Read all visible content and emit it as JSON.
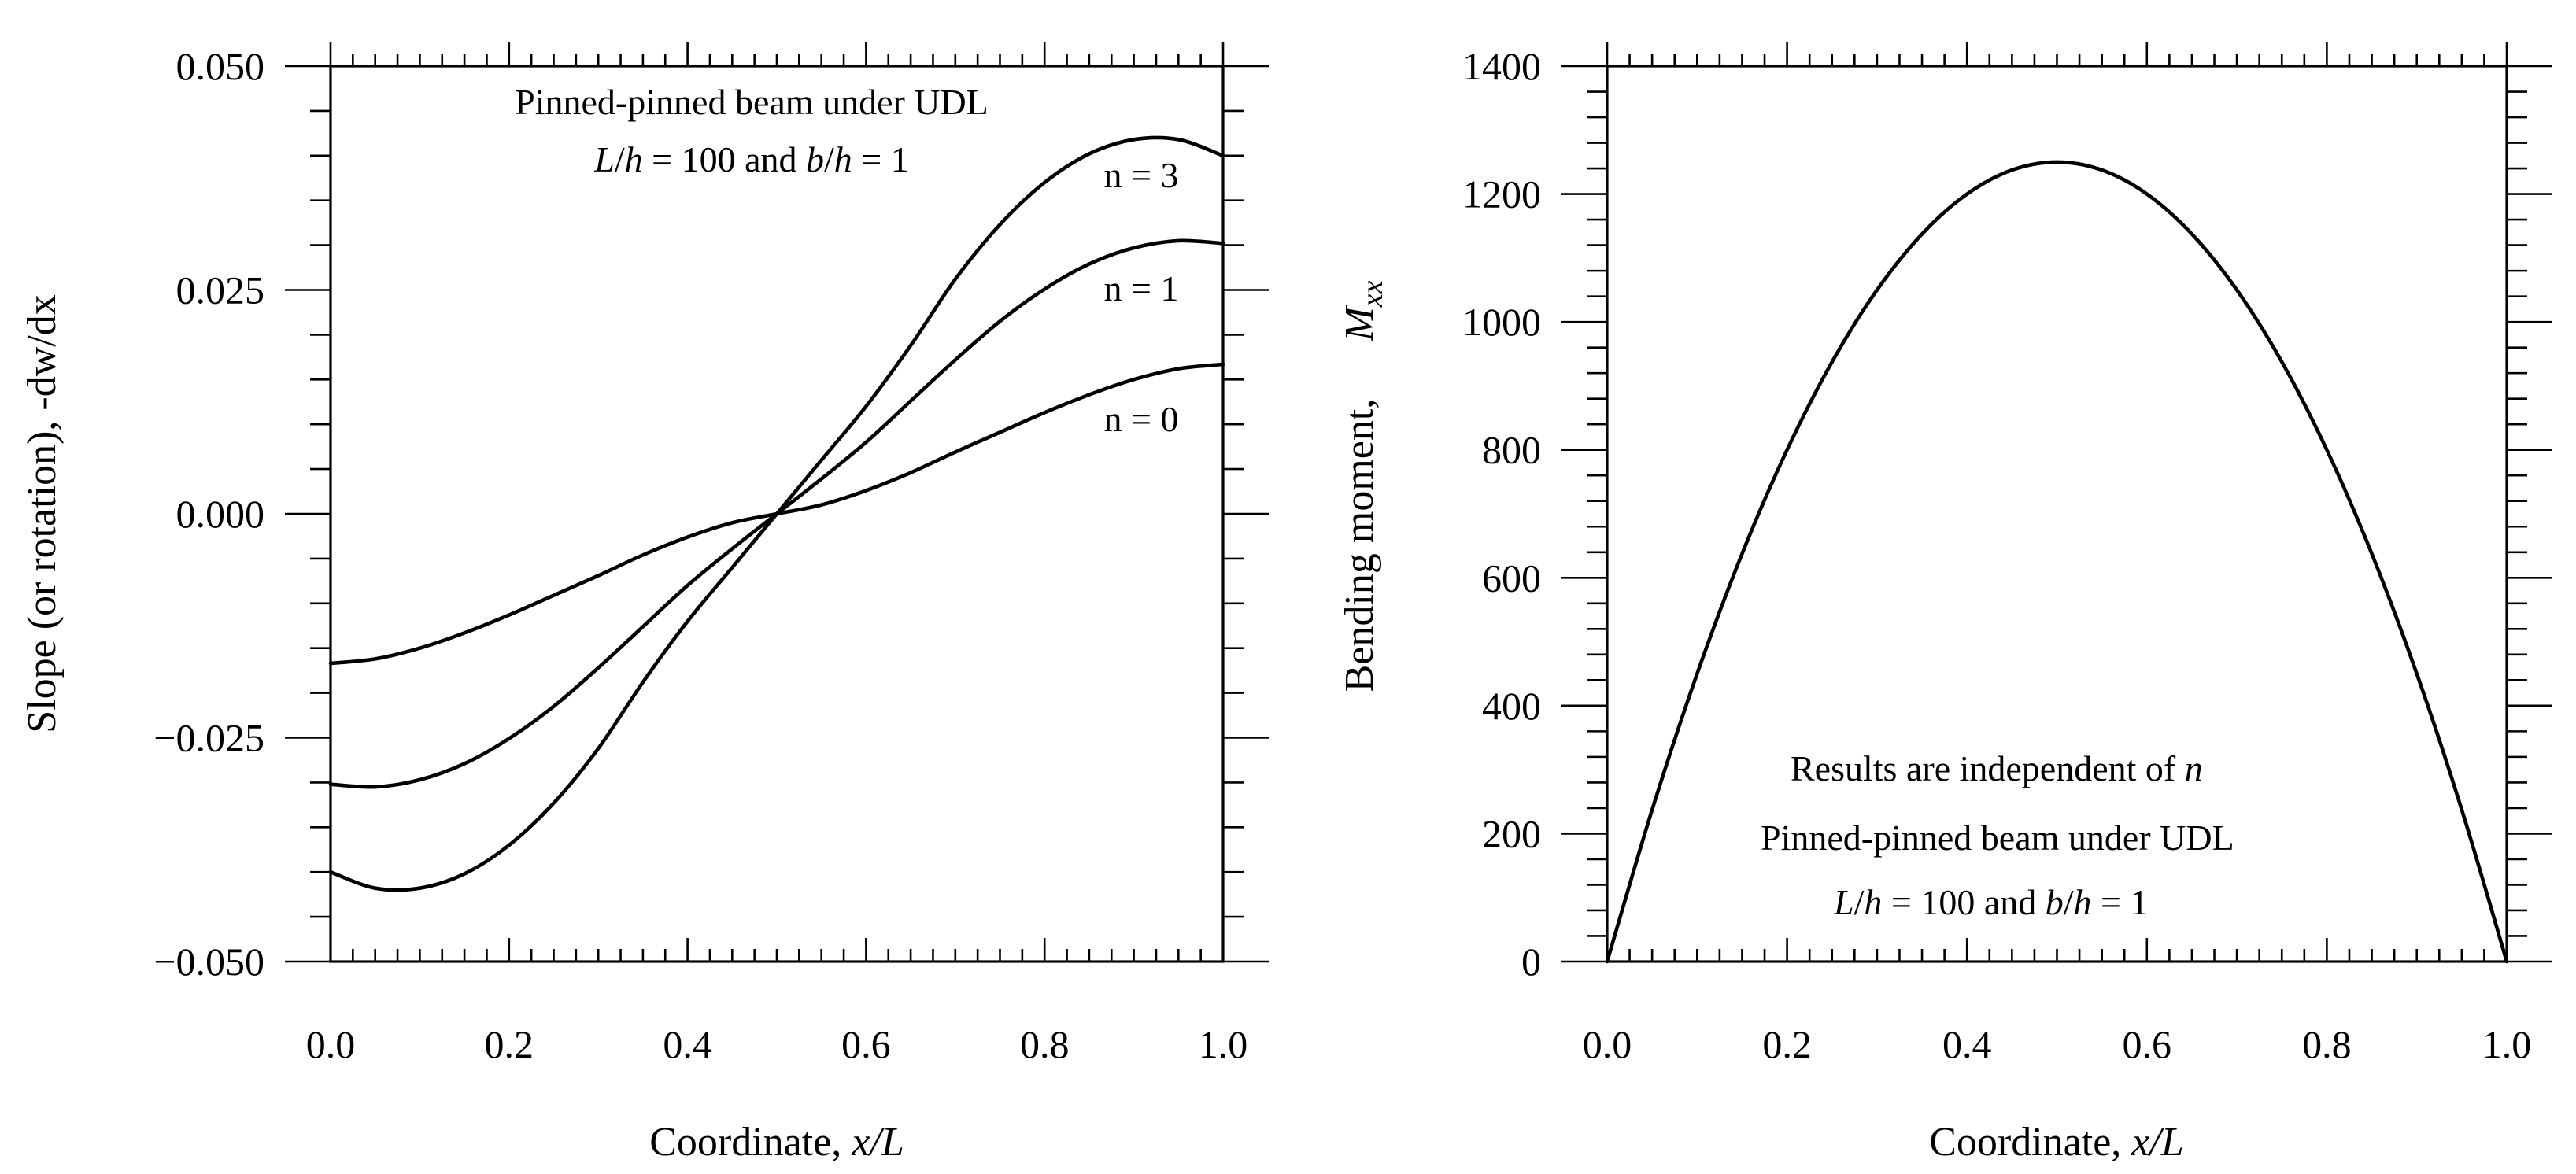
{
  "chart_data": [
    {
      "type": "line",
      "xlabel": "Coordinate,",
      "xlabel_var": "x/L",
      "ylabel": "Slope (or rotation), -dw/dx",
      "xlim": [
        0,
        1
      ],
      "ylim": [
        -0.05,
        0.05
      ],
      "xticks": [
        0,
        0.2,
        0.4,
        0.6,
        0.8,
        1.0
      ],
      "xtick_labels": [
        "0.0",
        "0.2",
        "0.4",
        "0.6",
        "0.8",
        "1.0"
      ],
      "yticks": [
        -0.05,
        -0.025,
        0,
        0.025,
        0.05
      ],
      "ytick_labels": [
        "−0.050",
        "−0.025",
        "0.000",
        "0.025",
        "0.050"
      ],
      "annotations": [
        "Pinned-pinned beam under UDL",
        "L/h = 100 and b/h = 1"
      ],
      "series": [
        {
          "name": "n = 3",
          "x": [
            0,
            0.05,
            0.1,
            0.15,
            0.2,
            0.25,
            0.3,
            0.35,
            0.4,
            0.45,
            0.5,
            0.55,
            0.6,
            0.65,
            0.7,
            0.75,
            0.8,
            0.85,
            0.9,
            0.95,
            1.0
          ],
          "y": [
            -0.04,
            -0.0418,
            -0.0418,
            -0.0402,
            -0.037,
            -0.0323,
            -0.0262,
            -0.0188,
            -0.012,
            -0.006,
            0.0,
            0.006,
            0.012,
            0.0188,
            0.0262,
            0.0323,
            0.037,
            0.0402,
            0.0418,
            0.0418,
            0.04
          ]
        },
        {
          "name": "n = 1",
          "x": [
            0,
            0.05,
            0.1,
            0.15,
            0.2,
            0.25,
            0.3,
            0.35,
            0.4,
            0.45,
            0.5,
            0.55,
            0.6,
            0.65,
            0.7,
            0.75,
            0.8,
            0.85,
            0.9,
            0.95,
            1.0
          ],
          "y": [
            -0.0302,
            -0.0305,
            -0.0297,
            -0.0279,
            -0.0251,
            -0.0215,
            -0.0172,
            -0.0126,
            -0.008,
            -0.0039,
            0.0,
            0.0039,
            0.008,
            0.0126,
            0.0172,
            0.0215,
            0.0251,
            0.0279,
            0.0297,
            0.0305,
            0.0302
          ]
        },
        {
          "name": "n = 0",
          "x": [
            0,
            0.05,
            0.1,
            0.15,
            0.2,
            0.25,
            0.3,
            0.35,
            0.4,
            0.45,
            0.5,
            0.55,
            0.6,
            0.65,
            0.7,
            0.75,
            0.8,
            0.85,
            0.9,
            0.95,
            1.0
          ],
          "y": [
            -0.0167,
            -0.0162,
            -0.015,
            -0.0133,
            -0.0113,
            -0.0091,
            -0.0069,
            -0.0046,
            -0.0026,
            -0.001,
            0.0,
            0.001,
            0.0026,
            0.0046,
            0.0069,
            0.0091,
            0.0113,
            0.0133,
            0.015,
            0.0162,
            0.0167
          ]
        }
      ]
    },
    {
      "type": "line",
      "xlabel": "Coordinate,",
      "xlabel_var": "x/L",
      "ylabel": "Bending moment,",
      "ylabel_var": "Mxx",
      "xlim": [
        0,
        1
      ],
      "ylim": [
        0,
        1400
      ],
      "xticks": [
        0,
        0.2,
        0.4,
        0.6,
        0.8,
        1.0
      ],
      "xtick_labels": [
        "0.0",
        "0.2",
        "0.4",
        "0.6",
        "0.8",
        "1.0"
      ],
      "yticks": [
        0,
        200,
        400,
        600,
        800,
        1000,
        1200,
        1400
      ],
      "ytick_labels": [
        "0",
        "200",
        "400",
        "600",
        "800",
        "1000",
        "1200",
        "1400"
      ],
      "annotations": [
        "Results are independent of n",
        "Pinned-pinned beam under UDL",
        "L/h = 100 and b/h = 1"
      ],
      "series": [
        {
          "name": "Mxx",
          "x": [
            0,
            0.05,
            0.1,
            0.15,
            0.2,
            0.25,
            0.3,
            0.35,
            0.4,
            0.45,
            0.5,
            0.55,
            0.6,
            0.65,
            0.7,
            0.75,
            0.8,
            0.85,
            0.9,
            0.95,
            1.0
          ],
          "y": [
            0,
            237.5,
            450,
            637.5,
            800,
            937.5,
            1050,
            1137.5,
            1200,
            1237.5,
            1250,
            1237.5,
            1200,
            1137.5,
            1050,
            937.5,
            800,
            637.5,
            450,
            237.5,
            0
          ]
        }
      ]
    }
  ]
}
